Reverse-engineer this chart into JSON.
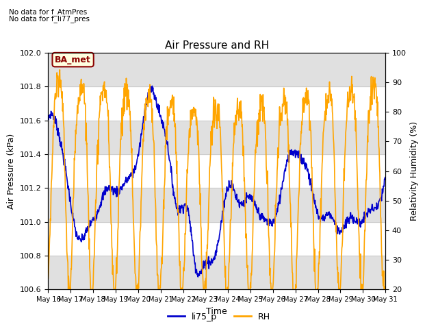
{
  "title": "Air Pressure and RH",
  "xlabel": "Time",
  "ylabel_left": "Air Pressure (kPa)",
  "ylabel_right": "Relativity Humidity (%)",
  "ylim_left": [
    100.6,
    102.0
  ],
  "ylim_right": [
    20,
    100
  ],
  "yticks_left": [
    100.6,
    100.8,
    101.0,
    101.2,
    101.4,
    101.6,
    101.8,
    102.0
  ],
  "yticks_right": [
    20,
    30,
    40,
    50,
    60,
    70,
    80,
    90,
    100
  ],
  "xtick_labels": [
    "May 16",
    "May 17",
    "May 18",
    "May 19",
    "May 20",
    "May 21",
    "May 22",
    "May 23",
    "May 24",
    "May 25",
    "May 26",
    "May 27",
    "May 28",
    "May 29",
    "May 30",
    "May 31"
  ],
  "top_left_text1": "No data for f_AtmPres",
  "top_left_text2": "No data for f_li77_pres",
  "station_label": "BA_met",
  "line_blue_color": "#0000cc",
  "line_orange_color": "#ffa500",
  "legend_labels": [
    "li75_p",
    "RH"
  ],
  "bg_band_color": "#e0e0e0",
  "grid_color": "#cccccc",
  "n_days": 16
}
